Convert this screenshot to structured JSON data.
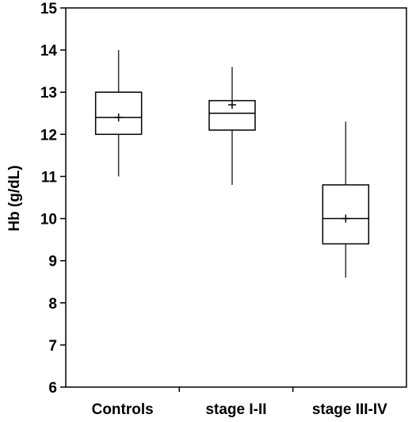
{
  "chart_data": {
    "type": "box",
    "title": "",
    "xlabel": "",
    "ylabel": "Hb (g/dL)",
    "ylim": [
      6,
      15
    ],
    "yticks": [
      6,
      7,
      8,
      9,
      10,
      11,
      12,
      13,
      14,
      15
    ],
    "grid": false,
    "categories": [
      "Controls",
      "stage I-II",
      "stage III-IV"
    ],
    "boxes": [
      {
        "category": "Controls",
        "min": 11.0,
        "q1": 12.0,
        "median": 12.4,
        "q3": 13.0,
        "max": 14.0,
        "mean": 12.4
      },
      {
        "category": "stage I-II",
        "min": 10.8,
        "q1": 12.1,
        "median": 12.5,
        "q3": 12.8,
        "max": 13.6,
        "mean": 12.7
      },
      {
        "category": "stage III-IV",
        "min": 8.6,
        "q1": 9.4,
        "median": 10.0,
        "q3": 10.8,
        "max": 12.3,
        "mean": 10.0
      }
    ],
    "colors": {
      "stroke": "#000000",
      "box_fill": "#ffffff",
      "whisker": "#333333"
    }
  }
}
